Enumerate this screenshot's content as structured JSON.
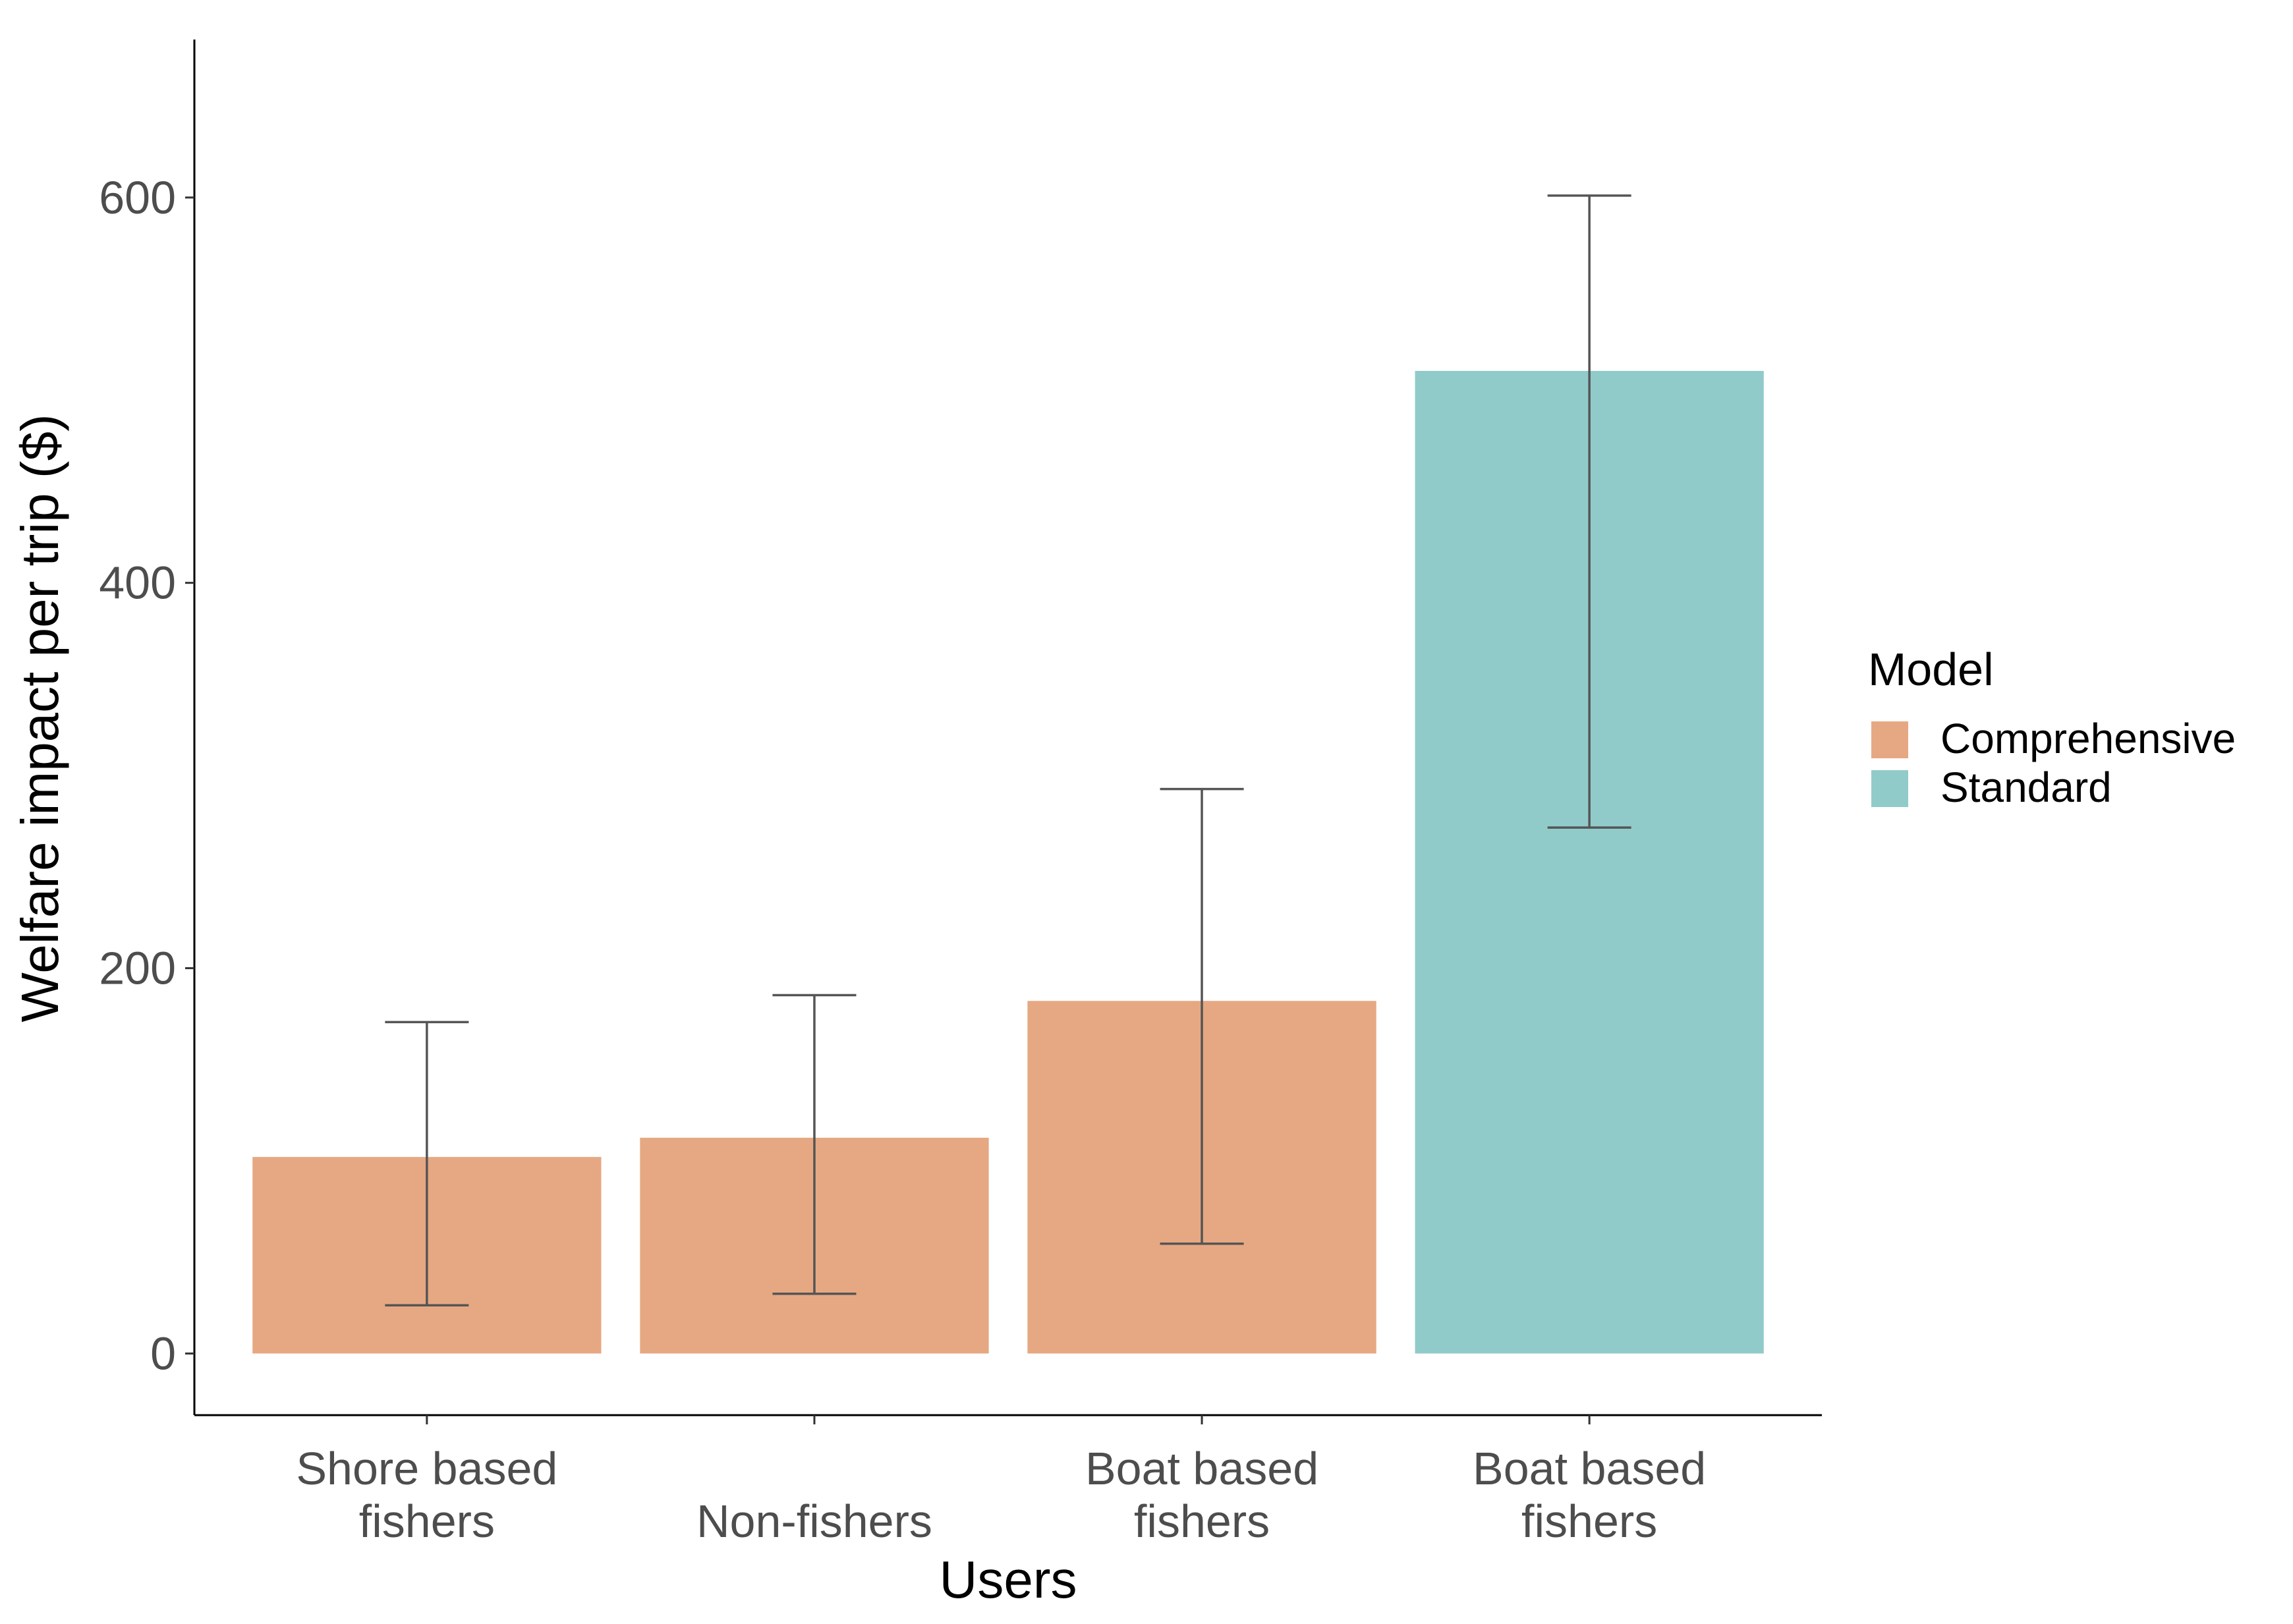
{
  "chart_data": {
    "type": "bar",
    "categories": [
      [
        "Shore based",
        "fishers"
      ],
      [
        "Non-fishers"
      ],
      [
        "Boat based",
        "fishers"
      ],
      [
        "Boat based",
        "fishers"
      ]
    ],
    "values": [
      102,
      112,
      183,
      510
    ],
    "error_low": [
      25,
      31,
      57,
      273
    ],
    "error_high": [
      172,
      186,
      293,
      601
    ],
    "model": [
      "Comprehensive",
      "Comprehensive",
      "Comprehensive",
      "Standard"
    ],
    "xlabel": "Users",
    "ylabel": "Welfare impact per trip ($)",
    "ylim": [
      -32,
      682
    ],
    "yticks": [
      0,
      200,
      400,
      600
    ],
    "legend": {
      "title": "Model",
      "position": "right",
      "items": [
        {
          "label": "Comprehensive",
          "color": "#E6A882"
        },
        {
          "label": "Standard",
          "color": "#90CBCA"
        }
      ]
    },
    "grid": false
  }
}
